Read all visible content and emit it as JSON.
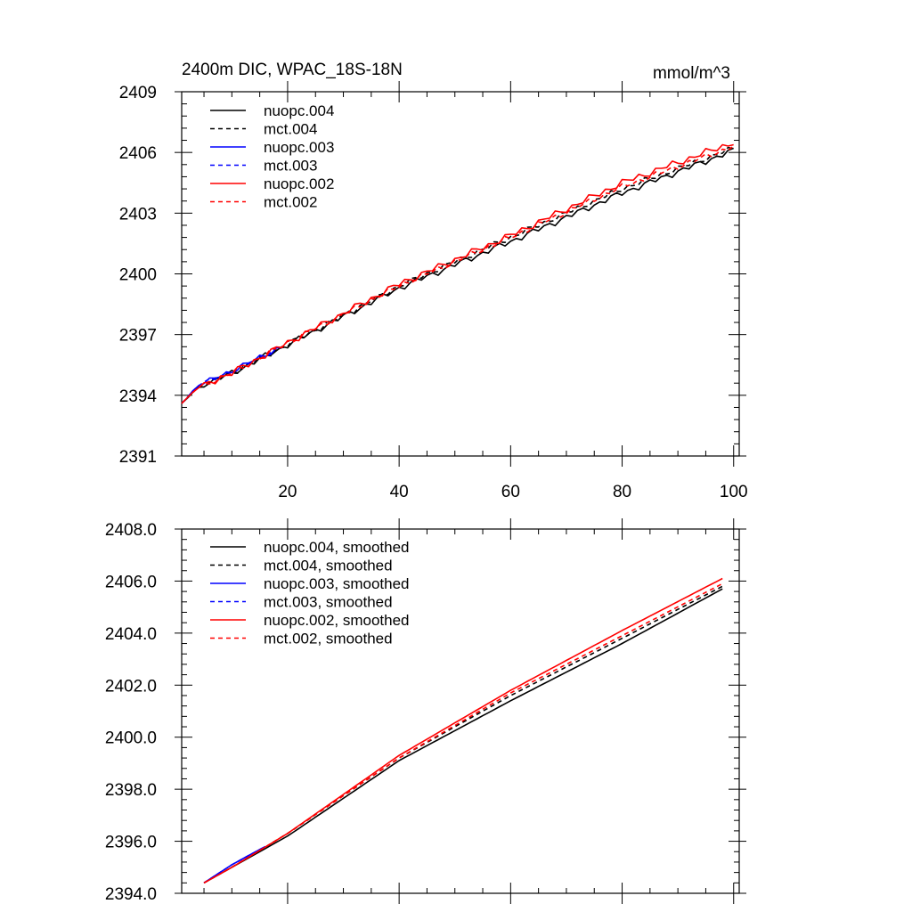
{
  "chart_data": [
    {
      "type": "line",
      "title": "2400m DIC, WPAC_18S-18N",
      "units": "mmol/m^3",
      "xlim": [
        1,
        101
      ],
      "ylim": [
        2391,
        2409
      ],
      "x_ticks": [
        20,
        40,
        60,
        80,
        100
      ],
      "x_tick_labels": [
        "20",
        "40",
        "60",
        "80",
        "100"
      ],
      "y_ticks": [
        2391,
        2394,
        2397,
        2400,
        2403,
        2406,
        2409
      ],
      "y_tick_labels": [
        "2391",
        "2394",
        "2397",
        "2400",
        "2403",
        "2406",
        "2409"
      ],
      "legend_position": "top-left",
      "series": [
        {
          "name": "nuopc.004",
          "color": "#000000",
          "dash": "solid",
          "end_x": 100,
          "anchors": [
            [
              1,
              2393.6
            ],
            [
              4,
              2394.4
            ],
            [
              10,
              2395.1
            ],
            [
              20,
              2396.5
            ],
            [
              40,
              2399.3
            ],
            [
              60,
              2401.6
            ],
            [
              80,
              2404.0
            ],
            [
              100,
              2406.1
            ]
          ],
          "wiggle": 0.18
        },
        {
          "name": "mct.004",
          "color": "#000000",
          "dash": "dashed",
          "end_x": 100,
          "anchors": [
            [
              1,
              2393.6
            ],
            [
              4,
              2394.4
            ],
            [
              10,
              2395.1
            ],
            [
              20,
              2396.5
            ],
            [
              40,
              2399.4
            ],
            [
              60,
              2401.8
            ],
            [
              80,
              2404.2
            ],
            [
              100,
              2406.2
            ]
          ],
          "wiggle": 0.16
        },
        {
          "name": "nuopc.003",
          "color": "#0000ff",
          "dash": "solid",
          "end_x": 19,
          "anchors": [
            [
              1,
              2393.6
            ],
            [
              4,
              2394.5
            ],
            [
              10,
              2395.2
            ],
            [
              19,
              2396.4
            ]
          ],
          "wiggle": 0.15
        },
        {
          "name": "mct.003",
          "color": "#0000ff",
          "dash": "dashed",
          "end_x": 19,
          "anchors": [
            [
              1,
              2393.6
            ],
            [
              4,
              2394.5
            ],
            [
              10,
              2395.2
            ],
            [
              19,
              2396.4
            ]
          ],
          "wiggle": 0.13
        },
        {
          "name": "nuopc.002",
          "color": "#ff0000",
          "dash": "solid",
          "end_x": 100,
          "anchors": [
            [
              1,
              2393.6
            ],
            [
              4,
              2394.4
            ],
            [
              10,
              2395.1
            ],
            [
              20,
              2396.6
            ],
            [
              40,
              2399.5
            ],
            [
              60,
              2401.9
            ],
            [
              80,
              2404.5
            ],
            [
              100,
              2406.5
            ]
          ],
          "wiggle": 0.2
        },
        {
          "name": "mct.002",
          "color": "#ff0000",
          "dash": "dashed",
          "end_x": 100,
          "anchors": [
            [
              1,
              2393.6
            ],
            [
              4,
              2394.4
            ],
            [
              10,
              2395.1
            ],
            [
              20,
              2396.6
            ],
            [
              40,
              2399.4
            ],
            [
              60,
              2401.8
            ],
            [
              80,
              2404.3
            ],
            [
              100,
              2406.3
            ]
          ],
          "wiggle": 0.16
        }
      ]
    },
    {
      "type": "line",
      "title": "",
      "xlim": [
        1,
        101
      ],
      "ylim": [
        2394.0,
        2408.0
      ],
      "x_ticks": [
        20,
        40,
        60,
        80,
        100
      ],
      "x_tick_labels": [],
      "y_ticks": [
        2394.0,
        2396.0,
        2398.0,
        2400.0,
        2402.0,
        2404.0,
        2406.0,
        2408.0
      ],
      "y_tick_labels": [
        "2394.0",
        "2396.0",
        "2398.0",
        "2400.0",
        "2402.0",
        "2404.0",
        "2406.0",
        "2408.0"
      ],
      "legend_position": "top-left",
      "series": [
        {
          "name": "nuopc.004, smoothed",
          "color": "#000000",
          "dash": "solid",
          "end_x": 98,
          "anchors": [
            [
              5,
              2394.4
            ],
            [
              10,
              2395.0
            ],
            [
              20,
              2396.2
            ],
            [
              40,
              2399.1
            ],
            [
              60,
              2401.4
            ],
            [
              80,
              2403.6
            ],
            [
              98,
              2405.7
            ]
          ]
        },
        {
          "name": "mct.004, smoothed",
          "color": "#000000",
          "dash": "dashed",
          "end_x": 98,
          "anchors": [
            [
              5,
              2394.4
            ],
            [
              10,
              2395.0
            ],
            [
              20,
              2396.3
            ],
            [
              40,
              2399.2
            ],
            [
              60,
              2401.6
            ],
            [
              80,
              2403.8
            ],
            [
              98,
              2405.8
            ]
          ]
        },
        {
          "name": "nuopc.003, smoothed",
          "color": "#0000ff",
          "dash": "solid",
          "end_x": 16,
          "anchors": [
            [
              5,
              2394.4
            ],
            [
              10,
              2395.1
            ],
            [
              16,
              2395.8
            ]
          ]
        },
        {
          "name": "mct.003, smoothed",
          "color": "#0000ff",
          "dash": "dashed",
          "end_x": 16,
          "anchors": [
            [
              5,
              2394.4
            ],
            [
              10,
              2395.1
            ],
            [
              16,
              2395.8
            ]
          ]
        },
        {
          "name": "nuopc.002, smoothed",
          "color": "#ff0000",
          "dash": "solid",
          "end_x": 98,
          "anchors": [
            [
              5,
              2394.4
            ],
            [
              10,
              2395.0
            ],
            [
              20,
              2396.3
            ],
            [
              40,
              2399.3
            ],
            [
              60,
              2401.8
            ],
            [
              80,
              2404.1
            ],
            [
              98,
              2406.1
            ]
          ]
        },
        {
          "name": "mct.002, smoothed",
          "color": "#ff0000",
          "dash": "dashed",
          "end_x": 98,
          "anchors": [
            [
              5,
              2394.4
            ],
            [
              10,
              2395.0
            ],
            [
              20,
              2396.3
            ],
            [
              40,
              2399.2
            ],
            [
              60,
              2401.7
            ],
            [
              80,
              2403.9
            ],
            [
              98,
              2405.9
            ]
          ]
        }
      ]
    }
  ]
}
